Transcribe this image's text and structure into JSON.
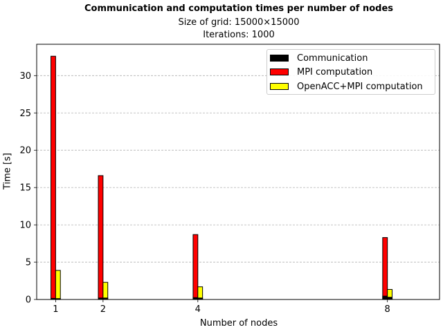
{
  "chart_data": {
    "type": "bar",
    "title": "Communication and computation times per number of nodes",
    "subtitle_lines": [
      "Size of grid: 15000×15000",
      "Iterations: 1000"
    ],
    "xlabel": "Number of nodes",
    "ylabel": "Time [s]",
    "x": [
      1,
      2,
      4,
      8
    ],
    "x_ticks": [
      "1",
      "2",
      "4",
      "8"
    ],
    "y_ticks": [
      "0",
      "5",
      "10",
      "15",
      "20",
      "25",
      "30"
    ],
    "ylim": [
      0,
      34.2
    ],
    "xlim": [
      0.6,
      9.1
    ],
    "grid": "y-dashed",
    "legend_position": "top-right",
    "series": [
      {
        "name": "Communication",
        "color": "#000000",
        "values": [
          0.15,
          0.2,
          0.25,
          0.45
        ],
        "placement": "left-stack-base"
      },
      {
        "name": "MPI computation",
        "color": "#ff0000",
        "values": [
          32.6,
          16.6,
          8.7,
          8.3
        ],
        "placement": "left"
      },
      {
        "name": "OpenACC+MPI computation",
        "color": "#ffff00",
        "values": [
          3.9,
          2.3,
          1.7,
          1.35
        ],
        "placement": "right"
      }
    ],
    "openacc_communication": [
      0.12,
      0.2,
      0.2,
      0.3
    ]
  }
}
